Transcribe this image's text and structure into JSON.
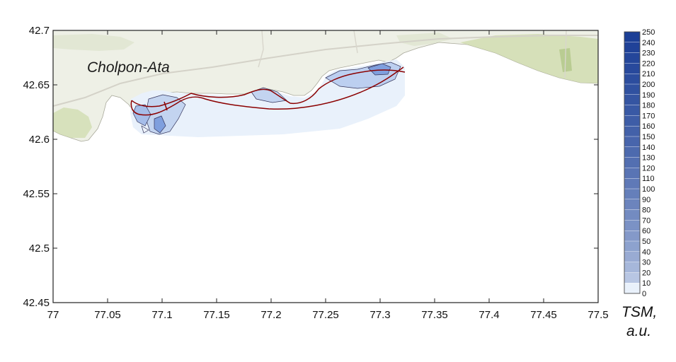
{
  "map": {
    "place_label": "Cholpon-Ata",
    "x_axis": {
      "min": 77,
      "max": 77.5,
      "ticks": [
        "77",
        "77.05",
        "77.1",
        "77.15",
        "77.2",
        "77.25",
        "77.3",
        "77.35",
        "77.4",
        "77.45",
        "77.5"
      ]
    },
    "y_axis": {
      "min": 42.45,
      "max": 42.7,
      "ticks": [
        "42.7",
        "42.65",
        "42.6",
        "42.55",
        "42.5",
        "42.45"
      ]
    }
  },
  "colorbar": {
    "title_line1": "TSM,",
    "title_line2": "a.u.",
    "labels": [
      "250",
      "240",
      "230",
      "220",
      "210",
      "200",
      "190",
      "180",
      "170",
      "160",
      "150",
      "140",
      "130",
      "120",
      "110",
      "100",
      "90",
      "80",
      "70",
      "60",
      "50",
      "40",
      "30",
      "20",
      "10",
      "0"
    ]
  },
  "colors": {
    "land": "#eef0e6",
    "vegetation": "#cfdcae",
    "contour_line": "#8b0000",
    "tsm_low": "#e9f1fb",
    "tsm_high": "#1c3f96"
  }
}
